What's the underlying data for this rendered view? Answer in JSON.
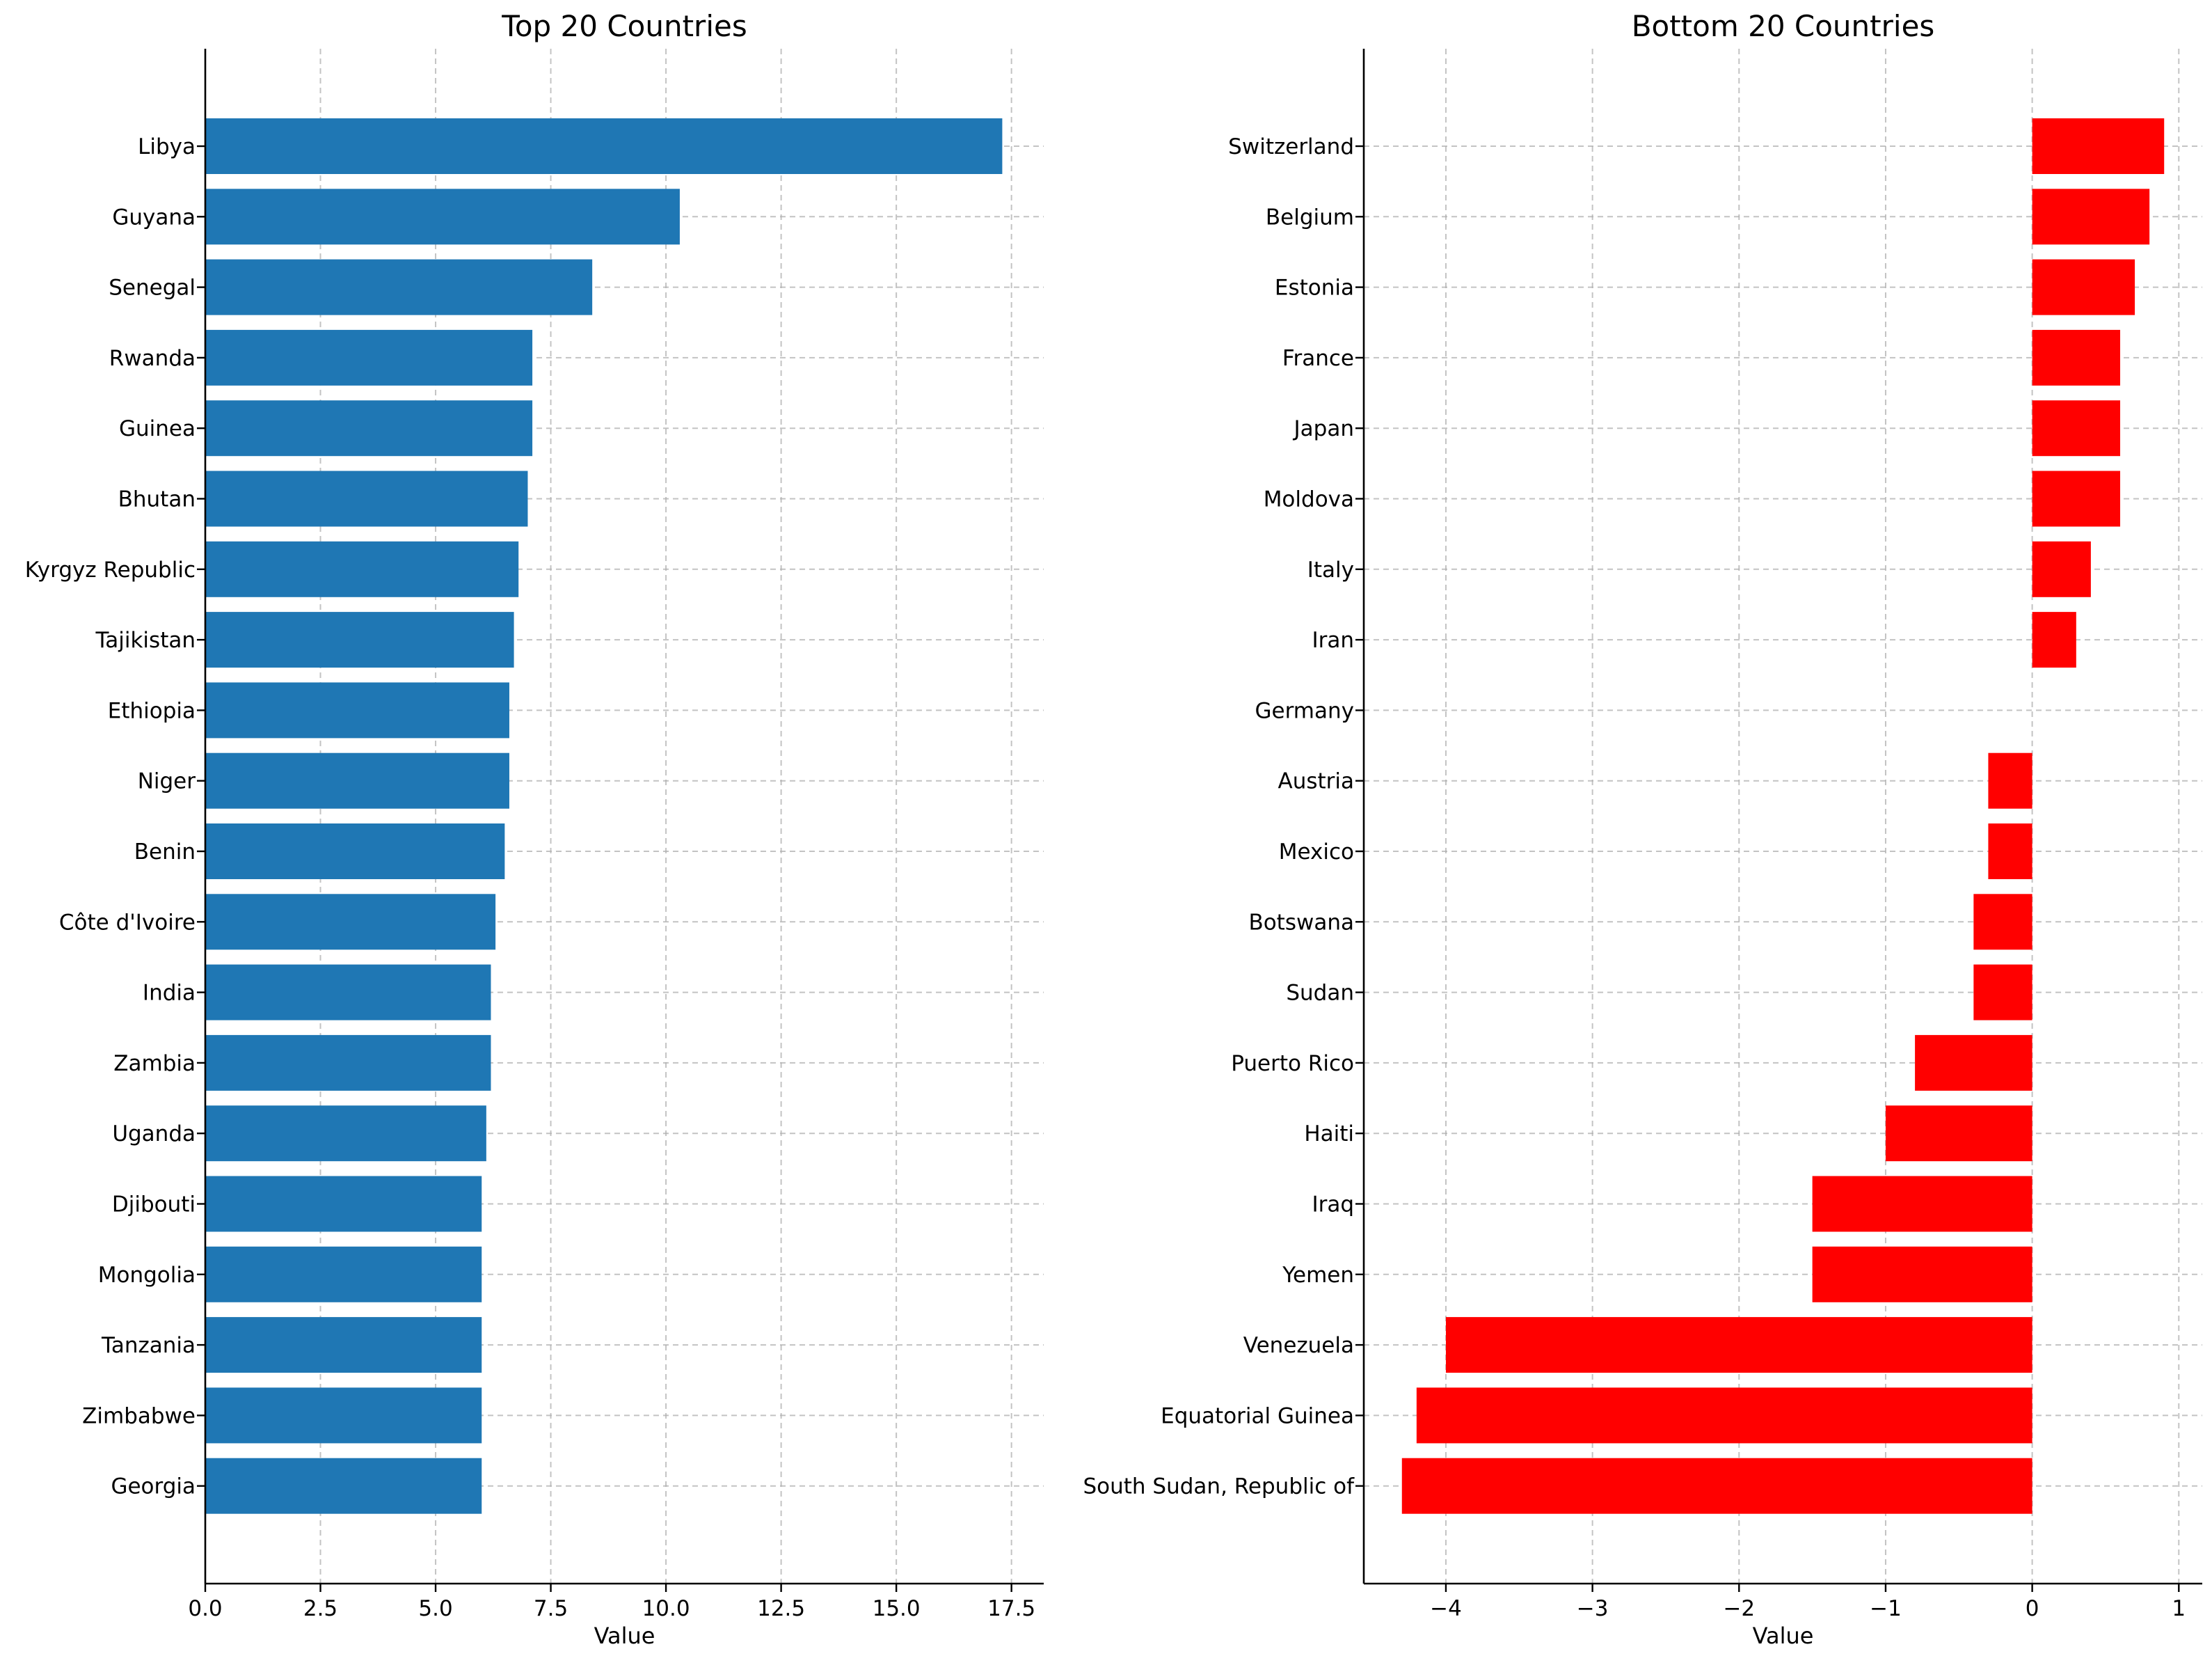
{
  "chart_data": [
    {
      "type": "bar",
      "orientation": "horizontal",
      "title": "Top 20 Countries",
      "xlabel": "Value",
      "ylabel": "",
      "xlim": [
        0,
        18.2
      ],
      "xticks": [
        "0.0",
        "2.5",
        "5.0",
        "7.5",
        "10.0",
        "12.5",
        "15.0",
        "17.5"
      ],
      "xtick_values": [
        0,
        2.5,
        5,
        7.5,
        10,
        12.5,
        15,
        17.5
      ],
      "grid": true,
      "color": "#1f77b4",
      "categories": [
        "Libya",
        "Guyana",
        "Senegal",
        "Rwanda",
        "Guinea",
        "Bhutan",
        "Kyrgyz Republic",
        "Tajikistan",
        "Ethiopia",
        "Niger",
        "Benin",
        "Côte d'Ivoire",
        "India",
        "Zambia",
        "Uganda",
        "Djibouti",
        "Mongolia",
        "Tanzania",
        "Zimbabwe",
        "Georgia"
      ],
      "values": [
        17.3,
        10.3,
        8.4,
        7.1,
        7.1,
        7.0,
        6.8,
        6.7,
        6.6,
        6.6,
        6.5,
        6.3,
        6.2,
        6.2,
        6.1,
        6.0,
        6.0,
        6.0,
        6.0,
        6.0
      ]
    },
    {
      "type": "bar",
      "orientation": "horizontal",
      "title": "Bottom 20 Countries",
      "xlabel": "Value",
      "ylabel": "",
      "xlim": [
        -4.56,
        1.16
      ],
      "xticks": [
        "−4",
        "−3",
        "−2",
        "−1",
        "0",
        "1"
      ],
      "xtick_values": [
        -4,
        -3,
        -2,
        -1,
        0,
        1
      ],
      "grid": true,
      "color": "#ff0000",
      "categories": [
        "Switzerland",
        "Belgium",
        "Estonia",
        "France",
        "Japan",
        "Moldova",
        "Italy",
        "Iran",
        "Germany",
        "Austria",
        "Mexico",
        "Botswana",
        "Sudan",
        "Puerto Rico",
        "Haiti",
        "Iraq",
        "Yemen",
        "Venezuela",
        "Equatorial Guinea",
        "South Sudan, Republic of"
      ],
      "values": [
        0.9,
        0.8,
        0.7,
        0.6,
        0.6,
        0.6,
        0.4,
        0.3,
        0.0,
        -0.3,
        -0.3,
        -0.4,
        -0.4,
        -0.8,
        -1.0,
        -1.5,
        -1.5,
        -4.0,
        -4.2,
        -4.3
      ]
    }
  ]
}
